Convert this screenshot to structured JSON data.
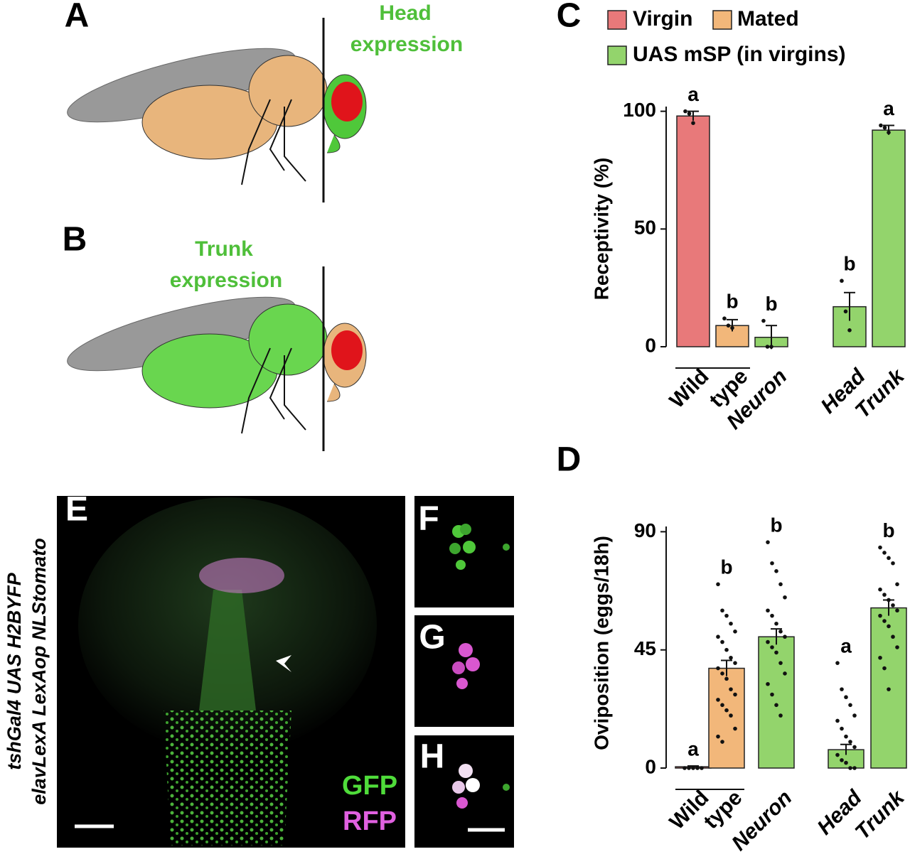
{
  "panel_a": {
    "letter": "A",
    "label": [
      "Head",
      "expression"
    ]
  },
  "panel_b": {
    "letter": "B",
    "label": [
      "Trunk",
      "expression"
    ]
  },
  "panel_e": {
    "letter": "E",
    "side_label": [
      "tshGal4 UAS H2BYFP",
      "elavLexA LexAop NLStomato"
    ],
    "channels": [
      "GFP",
      "RFP"
    ]
  },
  "panel_f": {
    "letter": "F"
  },
  "panel_g": {
    "letter": "G"
  },
  "panel_h": {
    "letter": "H"
  },
  "chart_data": [
    {
      "type": "bar",
      "panel": "C",
      "y_label": "Receptivity (%)",
      "legend": [
        {
          "name": "Virgin",
          "color": "#e8797a"
        },
        {
          "name": "Mated",
          "color": "#f2b77a"
        },
        {
          "name": "UAS mSP (in virgins)",
          "color": "#93d46c"
        }
      ],
      "categories": [
        "Wild",
        "type",
        "Neuron",
        "Head",
        "Trunk"
      ],
      "italic": [
        false,
        false,
        true,
        true,
        true
      ],
      "values": [
        98,
        9,
        4,
        17,
        92
      ],
      "errors": [
        2,
        2.5,
        5,
        6,
        2
      ],
      "colors": [
        "#e8797a",
        "#f2b77a",
        "#93d46c",
        "#93d46c",
        "#93d46c"
      ],
      "significance": [
        "a",
        "b",
        "b",
        "b",
        "a"
      ],
      "points": [
        [
          100,
          99,
          95
        ],
        [
          12,
          9,
          8
        ],
        [
          11,
          0,
          0
        ],
        [
          28,
          15,
          7
        ],
        [
          94,
          93,
          91
        ]
      ],
      "ylim": [
        0,
        102
      ],
      "yticks": [
        0,
        50,
        100
      ]
    },
    {
      "type": "bar",
      "panel": "D",
      "y_label": "Oviposition (eggs/18h)",
      "categories": [
        "Wild",
        "type",
        "Neuron",
        "Head",
        "Trunk"
      ],
      "italic": [
        false,
        false,
        true,
        true,
        true
      ],
      "values": [
        0.5,
        38,
        50,
        7,
        61
      ],
      "errors": [
        0.3,
        3,
        3,
        2,
        3
      ],
      "colors": [
        "#e8797a",
        "#f2b77a",
        "#93d46c",
        "#93d46c",
        "#93d46c"
      ],
      "significance": [
        "a",
        "b",
        "b",
        "a",
        "b"
      ],
      "points": [
        [
          0,
          0,
          0,
          0,
          0
        ],
        [
          70,
          60,
          58,
          55,
          52,
          50,
          48,
          45,
          42,
          40,
          38,
          36,
          34,
          30,
          28,
          26,
          24,
          22,
          20,
          15,
          12,
          10
        ],
        [
          86,
          78,
          75,
          70,
          65,
          60,
          58,
          55,
          52,
          50,
          48,
          46,
          44,
          40,
          36,
          32,
          28,
          24,
          20
        ],
        [
          40,
          30,
          27,
          24,
          20,
          18,
          15,
          12,
          10,
          8,
          5,
          3,
          2,
          0,
          0
        ],
        [
          84,
          82,
          80,
          78,
          70,
          68,
          66,
          64,
          62,
          60,
          58,
          56,
          54,
          50,
          46,
          42,
          38,
          30
        ]
      ],
      "ylim": [
        0,
        92
      ],
      "yticks": [
        0,
        45,
        90
      ]
    }
  ]
}
